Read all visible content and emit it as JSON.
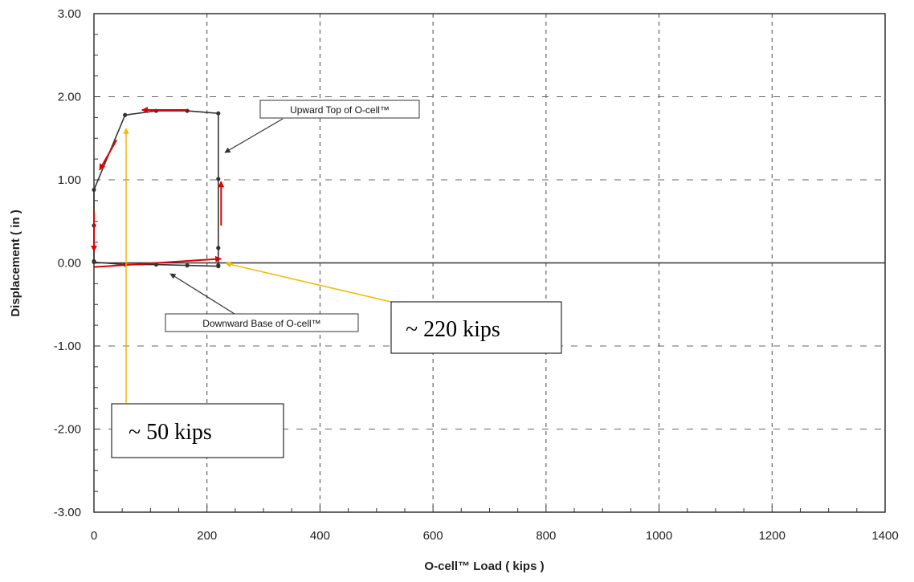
{
  "chart_data": {
    "type": "line",
    "title": "",
    "xlabel": "O-cell™ Load  ( kips )",
    "ylabel": "Displacement  ( in )",
    "xlim": [
      0,
      1400
    ],
    "ylim": [
      -3,
      3
    ],
    "x_ticks": [
      0,
      200,
      400,
      600,
      800,
      1000,
      1200,
      1400
    ],
    "y_ticks": [
      3,
      2,
      1,
      0,
      -1,
      -2,
      -3
    ],
    "x_tick_labels": [
      "0",
      "200",
      "400",
      "600",
      "800",
      "1000",
      "1200",
      "1400"
    ],
    "y_tick_labels": [
      "3.00",
      "2.00",
      "1.00",
      "0.00",
      "-1.00",
      "-2.00",
      "-3.00"
    ],
    "grid": true,
    "series": [
      {
        "name": "Upward Top of O-cell™",
        "color": "#333333",
        "points": [
          [
            0,
            0.02
          ],
          [
            0,
            0.45
          ],
          [
            0,
            0.88
          ],
          [
            55,
            1.78
          ],
          [
            110,
            1.83
          ],
          [
            165,
            1.83
          ],
          [
            220,
            1.8
          ],
          [
            220,
            1.01
          ],
          [
            220,
            0.18
          ],
          [
            220,
            -0.03
          ]
        ]
      },
      {
        "name": "Downward Base of O-cell™",
        "color": "#333333",
        "points": [
          [
            0,
            0.01
          ],
          [
            55,
            -0.02
          ],
          [
            110,
            -0.02
          ],
          [
            165,
            -0.03
          ],
          [
            220,
            -0.04
          ]
        ]
      }
    ],
    "callouts": [
      {
        "text": "Upward Top of O-cell™"
      },
      {
        "text": "Downward Base of O-cell™"
      }
    ],
    "annotations": [
      {
        "text": "~ 220 kips",
        "arrow_color": "#f5b800",
        "value": 220
      },
      {
        "text": "~ 50 kips",
        "arrow_color": "#f5b800",
        "value": 50
      }
    ],
    "red_arrow_color": "#e00000"
  }
}
